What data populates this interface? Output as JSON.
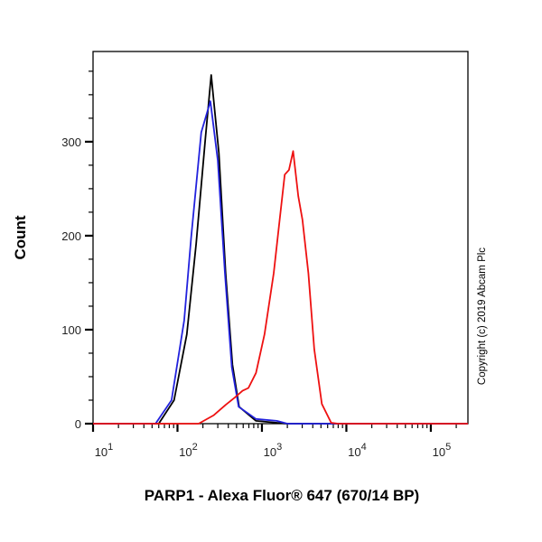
{
  "chart_data": {
    "type": "line",
    "xlabel": "PARP1 - Alexa Fluor® 647 (670/14 BP)",
    "ylabel": "Count",
    "x_scale": "log",
    "xlim": [
      10,
      275000
    ],
    "ylim": [
      0,
      396
    ],
    "x_ticks": [
      {
        "base": "10",
        "exp": "1",
        "value": 10
      },
      {
        "base": "10",
        "exp": "2",
        "value": 100
      },
      {
        "base": "10",
        "exp": "3",
        "value": 1000
      },
      {
        "base": "10",
        "exp": "4",
        "value": 10000
      },
      {
        "base": "10",
        "exp": "5",
        "value": 100000
      }
    ],
    "y_ticks": [
      0,
      100,
      200,
      300
    ],
    "grid": false,
    "legend": "none",
    "annotation": "Copyright (c) 2019 Abcam Plc",
    "series": [
      {
        "color": "#000000",
        "x": [
          10,
          60,
          91,
          129,
          166,
          214,
          251,
          309,
          372,
          447,
          537,
          851,
          1950,
          275000
        ],
        "y": [
          0,
          0,
          25,
          95,
          191,
          304,
          371,
          288,
          160,
          63,
          18,
          3,
          0,
          0
        ]
      },
      {
        "color": "#2222dd",
        "x": [
          10,
          55,
          85,
          120,
          145,
          191,
          245,
          300,
          365,
          440,
          530,
          850,
          1500,
          2000,
          275000
        ],
        "y": [
          0,
          0,
          25,
          110,
          198,
          310,
          343,
          280,
          160,
          60,
          18,
          5,
          3,
          0,
          0
        ]
      },
      {
        "color": "#ee1111",
        "x": [
          10,
          178,
          269,
          372,
          479,
          589,
          692,
          851,
          1072,
          1380,
          1622,
          1862,
          2089,
          2344,
          2692,
          3020,
          3548,
          4169,
          5129,
          6607,
          8000,
          275000
        ],
        "y": [
          0,
          0,
          9,
          20,
          28,
          35,
          38,
          54,
          95,
          160,
          217,
          265,
          270,
          290,
          242,
          217,
          160,
          79,
          21,
          1,
          0,
          0
        ]
      }
    ]
  }
}
